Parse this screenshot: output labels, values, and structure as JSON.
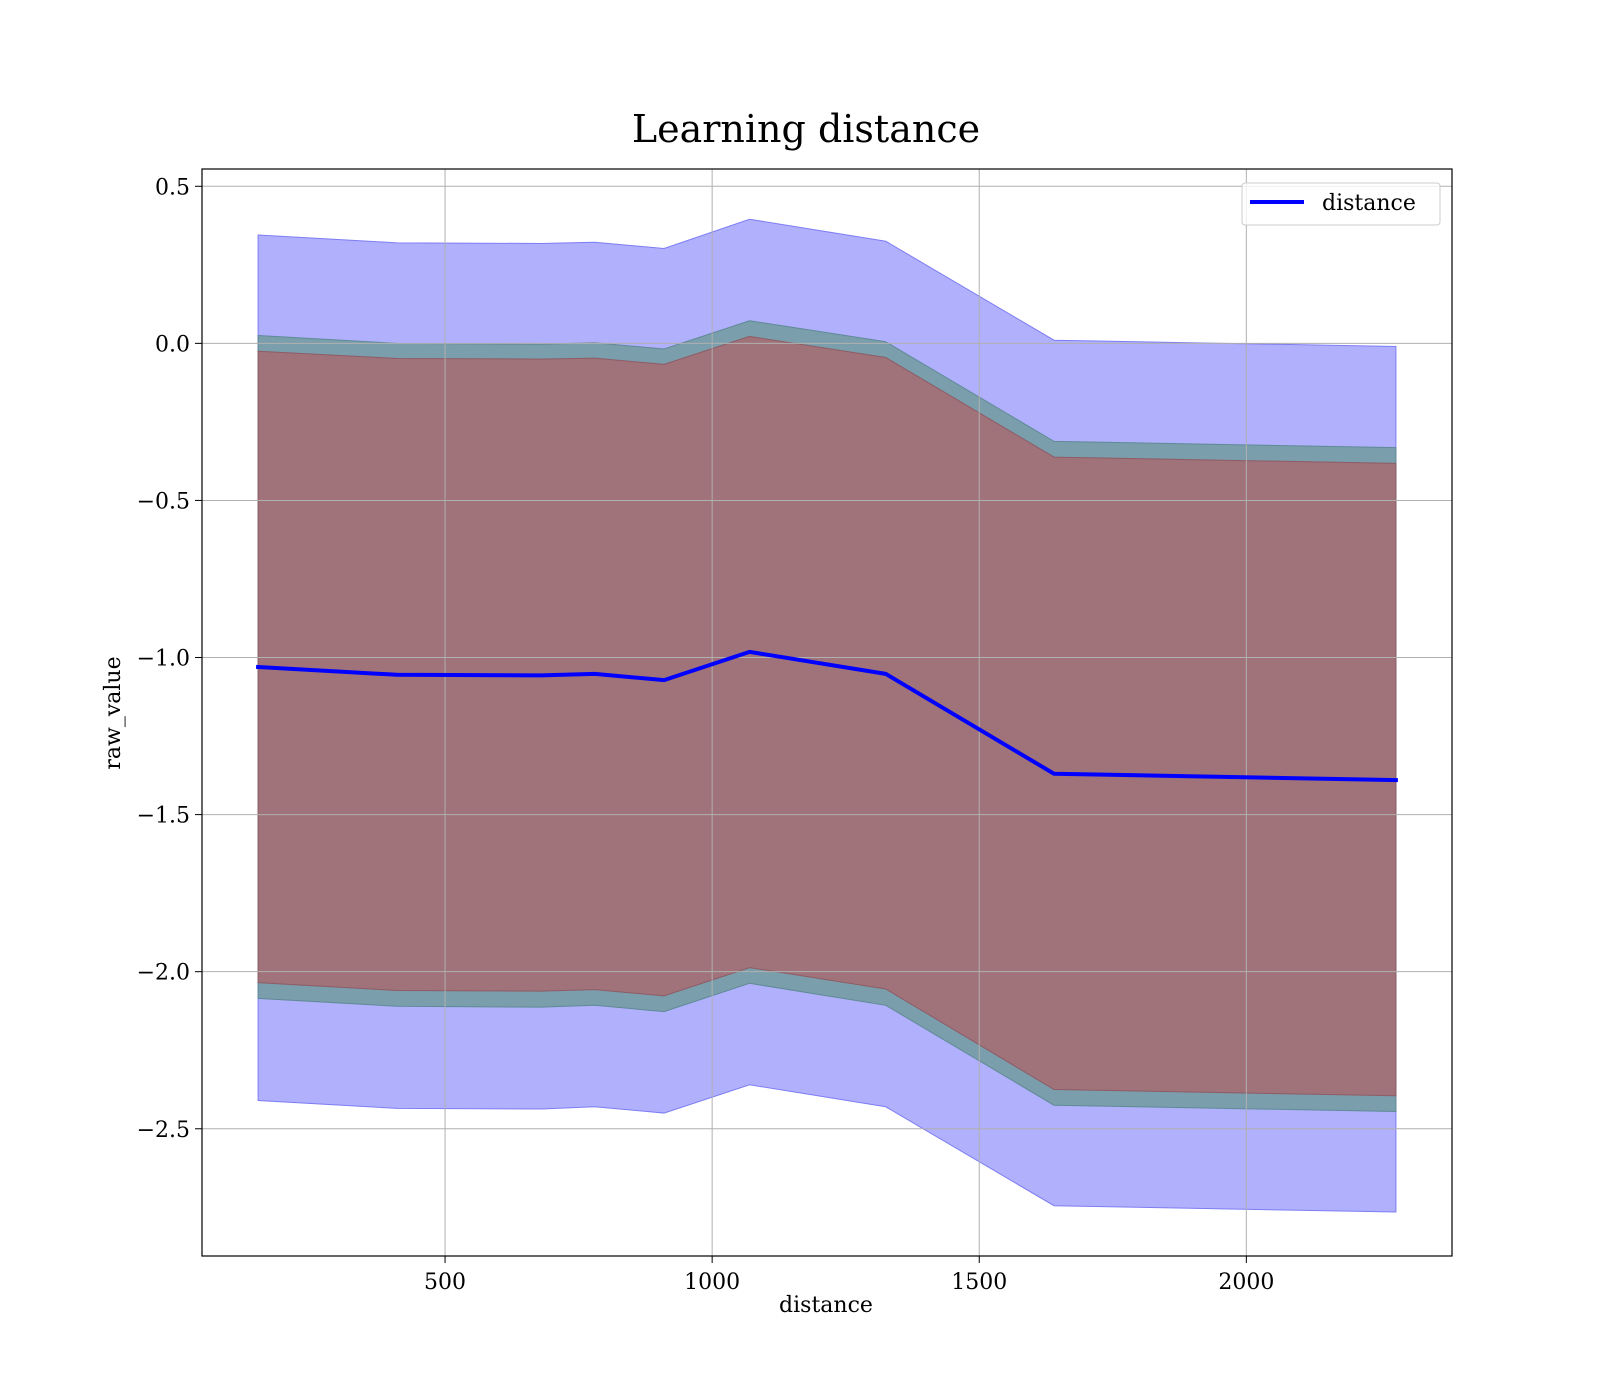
{
  "chart_data": {
    "type": "line",
    "title": "Learning distance",
    "xlabel": "distance",
    "ylabel": "raw_value",
    "xlim": [
      45,
      2385
    ],
    "ylim": [
      -2.905,
      0.555
    ],
    "xticks": [
      500,
      1000,
      1500,
      2000
    ],
    "yticks": [
      0.5,
      0.0,
      -0.5,
      -1.0,
      -1.5,
      -2.0,
      -2.5
    ],
    "ytick_labels": [
      "0.5",
      "0.0",
      "−0.5",
      "−1.0",
      "−1.5",
      "−2.0",
      "−2.5"
    ],
    "grid": true,
    "legend": {
      "position": "top-right",
      "entries": [
        "distance"
      ]
    },
    "x": [
      150,
      410,
      680,
      780,
      910,
      1070,
      1325,
      1640,
      2280
    ],
    "series": [
      {
        "name": "distance",
        "values": [
          -1.03,
          -1.055,
          -1.057,
          -1.052,
          -1.072,
          -0.982,
          -1.052,
          -1.37,
          -1.39
        ]
      }
    ],
    "bands": [
      {
        "kind": "outer",
        "upper": [
          0.345,
          0.32,
          0.318,
          0.322,
          0.302,
          0.395,
          0.325,
          0.01,
          -0.01
        ],
        "lower": [
          -2.41,
          -2.435,
          -2.437,
          -2.43,
          -2.45,
          -2.36,
          -2.43,
          -2.745,
          -2.765
        ]
      },
      {
        "kind": "middle",
        "upper": [
          0.025,
          0.0,
          -0.003,
          0.002,
          -0.018,
          0.072,
          0.005,
          -0.312,
          -0.332
        ],
        "lower": [
          -2.085,
          -2.11,
          -2.113,
          -2.107,
          -2.127,
          -2.037,
          -2.107,
          -2.425,
          -2.445
        ]
      },
      {
        "kind": "inner",
        "upper": [
          -0.025,
          -0.048,
          -0.05,
          -0.047,
          -0.067,
          0.022,
          -0.045,
          -0.362,
          -0.382
        ],
        "lower": [
          -2.035,
          -2.06,
          -2.062,
          -2.057,
          -2.077,
          -1.987,
          -2.055,
          -2.375,
          -2.395
        ]
      }
    ],
    "colors": {
      "line": "#0000ff",
      "outer_band": "#b0b0fc",
      "middle_band": "#7a9eac",
      "inner_band": "#a0727a",
      "grid": "#b0b0b0"
    }
  }
}
